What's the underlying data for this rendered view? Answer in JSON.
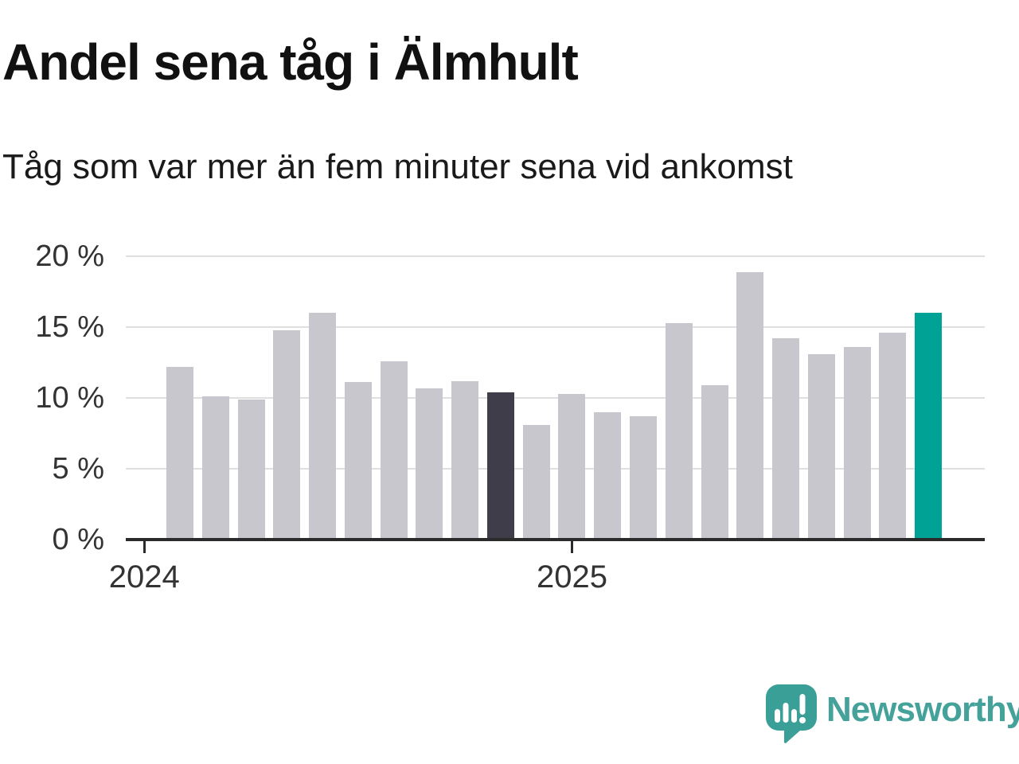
{
  "title": "Andel sena tåg i Älmhult",
  "subtitle": "Tåg som var mer än fem minuter sena vid ankomst",
  "logo": {
    "name": "Newsworthy",
    "icon": "newsworthy-speech-bubble-chart-icon"
  },
  "colors": {
    "bar_default": "#c8c7ce",
    "bar_highlight_dark": "#3e3d49",
    "bar_highlight_teal": "#00a295",
    "axis": "#2b2b2b",
    "gridline": "#dfdfdf",
    "title_text": "#111111",
    "tick_label": "#333333",
    "logo_teal": "#45a29b"
  },
  "chart_data": {
    "type": "bar",
    "title": "Andel sena tåg i Älmhult",
    "subtitle": "Tåg som var mer än fem minuter sena vid ankomst",
    "unit": "%",
    "values": [
      12.2,
      10.1,
      9.9,
      14.8,
      16.0,
      11.1,
      12.6,
      10.7,
      11.2,
      10.4,
      8.1,
      10.3,
      9.0,
      8.7,
      15.3,
      10.9,
      18.9,
      14.2,
      13.1,
      13.6,
      14.6,
      16.0
    ],
    "highlight_dark_index": 9,
    "highlight_teal_index": 21,
    "ylim": [
      0,
      20
    ],
    "y_tick_values": [
      0,
      5,
      10,
      15,
      20
    ],
    "y_tick_labels": [
      "0 %",
      "5 %",
      "10 %",
      "15 %",
      "20 %"
    ],
    "x_ticks": [
      {
        "label": "2024",
        "offset": -1
      },
      {
        "label": "2025",
        "offset": 11
      }
    ],
    "grid": true,
    "legend": false
  }
}
